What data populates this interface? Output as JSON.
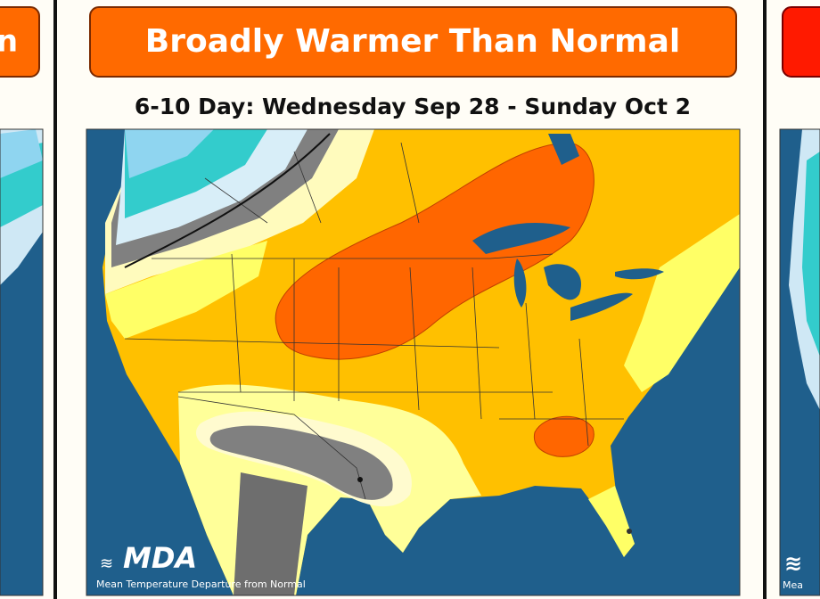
{
  "left_panel": {
    "title": "n"
  },
  "center_panel": {
    "title": "Broadly Warmer Than Normal",
    "subtitle": "6-10 Day: Wednesday Sep 28 - Sunday Oct 2",
    "logo": "MDA",
    "caption": "Mean Temperature Departure from Normal"
  },
  "right_panel": {
    "caption": "Mea"
  }
}
